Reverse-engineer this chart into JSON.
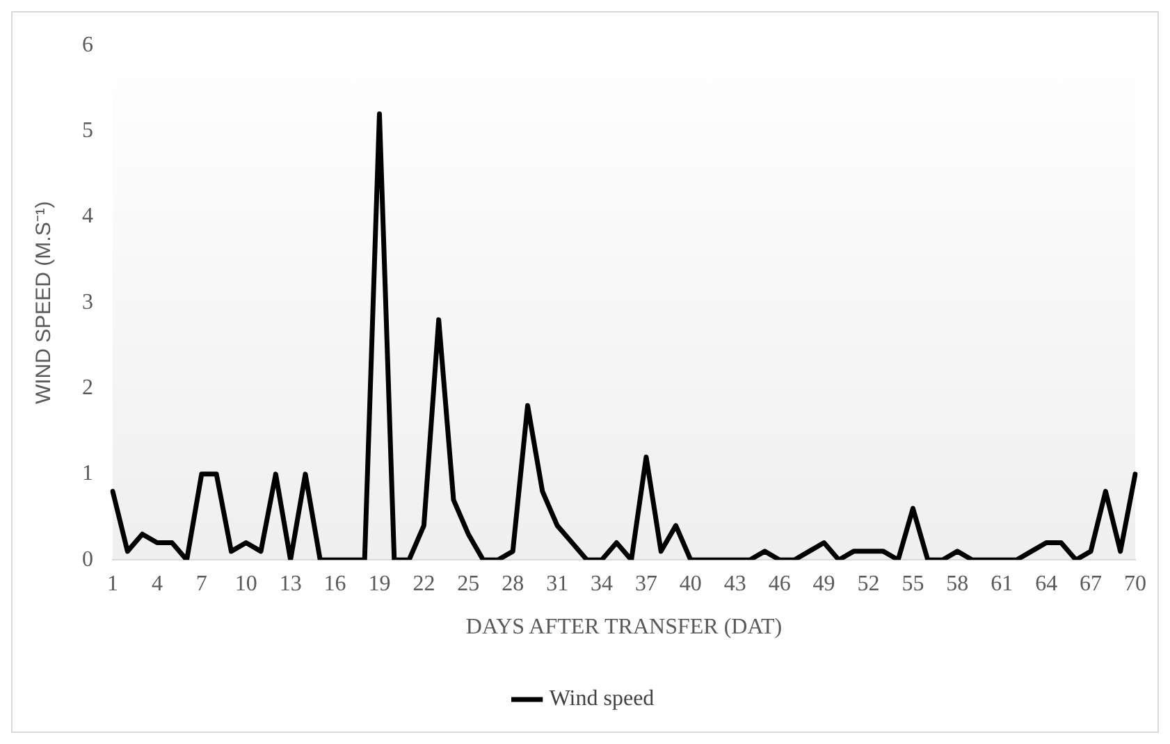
{
  "chart_data": {
    "type": "line",
    "xlabel": "DAYS AFTER TRANSFER (DAT)",
    "ylabel": "WIND SPEED (M.S⁻¹)",
    "categories": [
      "1",
      null,
      null,
      "4",
      null,
      null,
      "7",
      null,
      null,
      "10",
      null,
      null,
      "13",
      null,
      null,
      "16",
      null,
      null,
      "19",
      null,
      null,
      "22",
      null,
      null,
      "25",
      null,
      null,
      "28",
      null,
      null,
      "31",
      null,
      null,
      "34",
      null,
      null,
      "37",
      null,
      null,
      "40",
      null,
      null,
      "43",
      null,
      null,
      "46",
      null,
      null,
      "49",
      null,
      null,
      "52",
      null,
      null,
      "55",
      null,
      null,
      "58",
      null,
      null,
      "61",
      null,
      null,
      "64",
      null,
      null,
      "67",
      null,
      null,
      "70"
    ],
    "series": [
      {
        "name": "Wind speed",
        "color": "#000000",
        "values": [
          0.8,
          0.1,
          0.3,
          0.2,
          0.2,
          0,
          1,
          1,
          0.1,
          0.2,
          0.1,
          1,
          0,
          1,
          0,
          0,
          0,
          0,
          5.2,
          0,
          0,
          0.4,
          2.8,
          0.7,
          0.3,
          0,
          0,
          0.1,
          1.8,
          0.8,
          0.4,
          0.2,
          0,
          0,
          0.2,
          0,
          1.2,
          0.1,
          0.4,
          0,
          0,
          0,
          0,
          0,
          0.1,
          0,
          0,
          0.1,
          0.2,
          0,
          0.1,
          0.1,
          0.1,
          0,
          0.6,
          0,
          0,
          0.1,
          0,
          0,
          0,
          0,
          0.1,
          0.2,
          0.2,
          0,
          0.1,
          0.8,
          0.1,
          1
        ]
      }
    ],
    "ylim": [
      0,
      6
    ],
    "yticks": [
      0,
      1,
      2,
      3,
      4,
      5,
      6
    ],
    "grid": false,
    "legend": "bottom",
    "marker": "none",
    "line_style": "solid"
  }
}
